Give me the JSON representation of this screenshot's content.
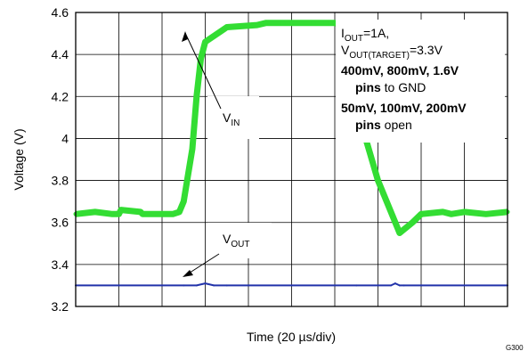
{
  "chart_data": {
    "type": "line",
    "xlabel": "Time (20 µs/div)",
    "ylabel": "Voltage (V)",
    "ylim": [
      3.2,
      4.6
    ],
    "y_ticks": [
      "3.2",
      "3.4",
      "3.6",
      "3.8",
      "4",
      "4.2",
      "4.4",
      "4.6"
    ],
    "x_divisions": 10,
    "x_range_us": [
      0,
      200
    ],
    "grid": true,
    "figure_id": "G300",
    "series": [
      {
        "name": "VIN",
        "color": "#33dd33",
        "x": [
          0,
          9,
          17,
          20,
          21,
          30,
          31,
          45,
          48,
          50,
          54,
          56,
          58,
          60,
          70,
          84,
          88,
          96,
          99,
          100,
          110,
          116,
          120,
          124,
          126,
          128,
          130,
          140,
          150,
          156,
          160,
          170,
          174,
          180,
          190,
          200
        ],
        "y": [
          3.64,
          3.65,
          3.64,
          3.64,
          3.66,
          3.65,
          3.64,
          3.64,
          3.65,
          3.7,
          3.95,
          4.2,
          4.38,
          4.46,
          4.53,
          4.54,
          4.55,
          4.55,
          4.55,
          4.55,
          4.55,
          4.55,
          4.55,
          4.54,
          4.53,
          4.45,
          4.15,
          3.8,
          3.55,
          3.6,
          3.64,
          3.65,
          3.64,
          3.65,
          3.64,
          3.65
        ]
      },
      {
        "name": "VOUT",
        "color": "#2233aa",
        "x": [
          0,
          20,
          40,
          50,
          56,
          60,
          64,
          70,
          80,
          100,
          120,
          130,
          140,
          146,
          148,
          150,
          152,
          160,
          180,
          200
        ],
        "y": [
          3.3,
          3.3,
          3.3,
          3.3,
          3.3,
          3.31,
          3.3,
          3.3,
          3.3,
          3.3,
          3.3,
          3.3,
          3.3,
          3.3,
          3.31,
          3.3,
          3.3,
          3.3,
          3.3,
          3.3
        ]
      }
    ],
    "labels": {
      "vin": {
        "main": "V",
        "sub": "IN"
      },
      "vout": {
        "main": "V",
        "sub": "OUT"
      }
    },
    "annotation": {
      "line1": {
        "a": "I",
        "a_sub": "OUT",
        "b": "=1A,"
      },
      "line2": {
        "a": "V",
        "a_sub": "OUT(TARGET)",
        "b": "=3.3V"
      },
      "line3": "400mV, 800mV, 1.6V",
      "line4_bold": "pins",
      "line4_rest": " to GND",
      "line5": "50mV, 100mV, 200mV",
      "line6_bold": "pins",
      "line6_rest": " open"
    }
  }
}
